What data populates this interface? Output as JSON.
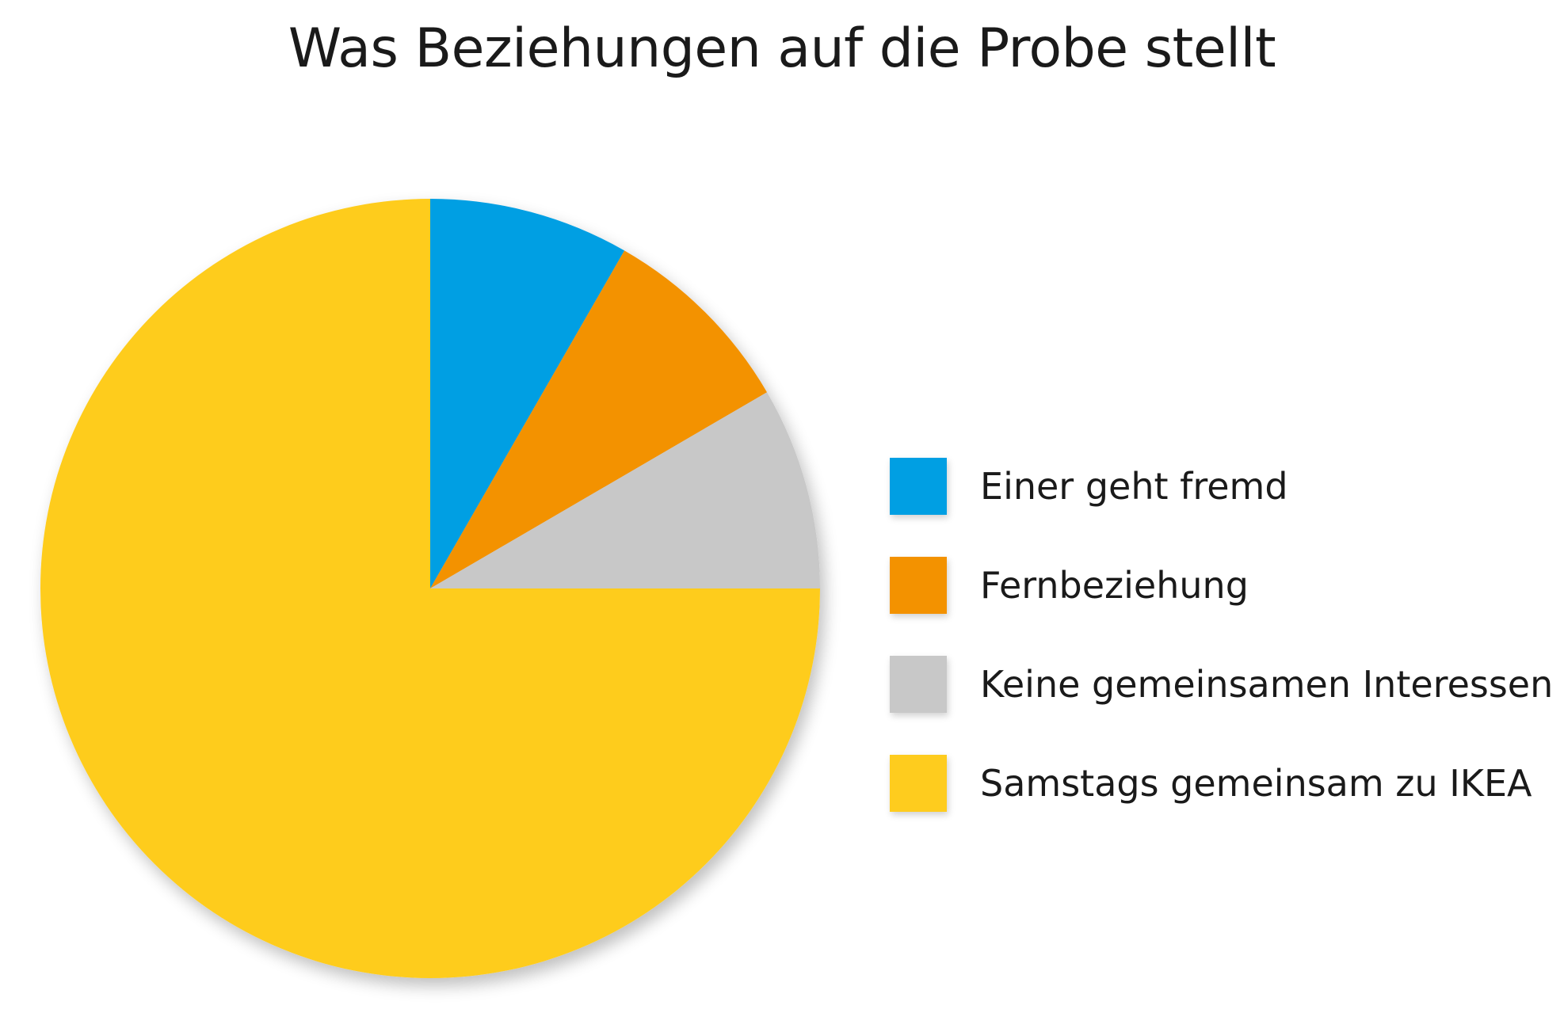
{
  "chart_data": {
    "type": "pie",
    "title": "Was Beziehungen auf die Probe stellt",
    "categories": [
      "Einer geht fremd",
      "Fernbeziehung",
      "Keine gemeinsamen Interessen",
      "Samstags gemeinsam zu IKEA"
    ],
    "values": [
      8.3,
      8.3,
      8.4,
      75.0
    ],
    "colors": [
      "#009fe3",
      "#f39200",
      "#c8c8c8",
      "#fecc1e"
    ],
    "start_angle": "12 o'clock",
    "direction": "clockwise",
    "legend_position": "right"
  }
}
